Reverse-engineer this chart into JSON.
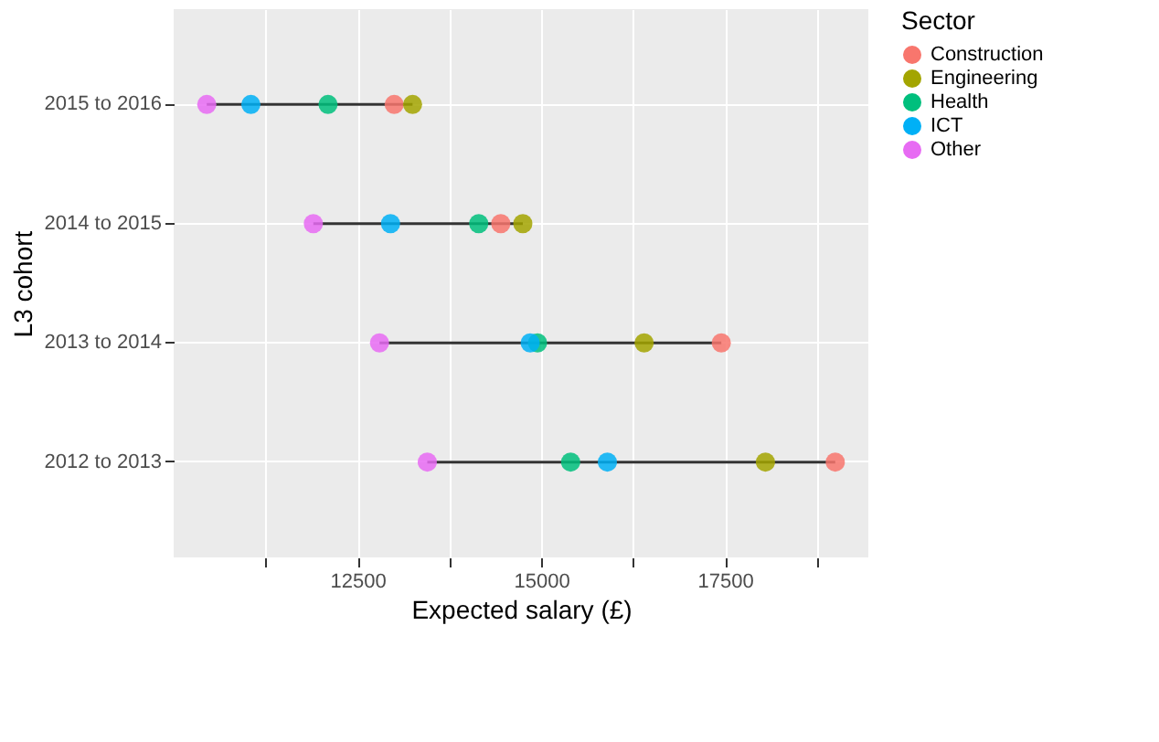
{
  "chart_data": {
    "type": "scatter",
    "orientation": "horizontal",
    "xlabel": "Expected salary (£)",
    "ylabel": "L3 cohort",
    "legend_title": "Sector",
    "legend": "right",
    "grid": true,
    "marker": "circle",
    "categories": [
      "2015 to 2016",
      "2014 to 2015",
      "2013 to 2014",
      "2012 to 2013"
    ],
    "xlim": [
      10000,
      19450
    ],
    "xticks": [
      {
        "value": 11250,
        "label": null
      },
      12500,
      {
        "value": 13750,
        "label": null
      },
      15000,
      {
        "value": 16250,
        "label": null
      },
      17500,
      {
        "value": 18750,
        "label": null
      }
    ],
    "series": [
      {
        "name": "Construction",
        "color": "#f8766d",
        "values": [
          13000,
          14450,
          17450,
          19000
        ]
      },
      {
        "name": "Engineering",
        "color": "#a3a500",
        "values": [
          13250,
          14750,
          16400,
          18050
        ]
      },
      {
        "name": "Health",
        "color": "#00bf7d",
        "values": [
          12100,
          14150,
          14950,
          15400
        ]
      },
      {
        "name": "ICT",
        "color": "#00b0f6",
        "values": [
          11050,
          12950,
          14850,
          15900
        ]
      },
      {
        "name": "Other",
        "color": "#e76bf3",
        "values": [
          10450,
          11900,
          12800,
          13450
        ]
      }
    ]
  }
}
